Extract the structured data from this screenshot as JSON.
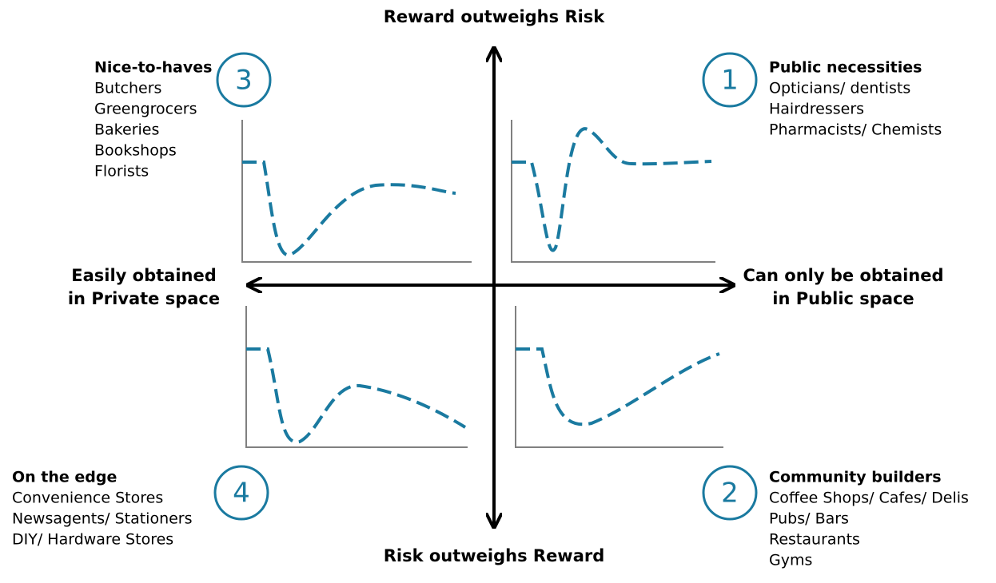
{
  "axes": {
    "top": "Reward outweighs Risk",
    "bottom": "Risk outweighs Reward",
    "left": [
      "Easily obtained",
      "in Private space"
    ],
    "right": [
      "Can only be obtained",
      "in Public space"
    ]
  },
  "quadrants": [
    {
      "number": "1",
      "title": "Public necessities",
      "items": [
        "Opticians/ dentists",
        "Hairdressers",
        "Pharmacists/ Chemists"
      ]
    },
    {
      "number": "2",
      "title": "Community builders",
      "items": [
        "Coffee Shops/ Cafes/ Delis",
        "Pubs/ Bars",
        "Restaurants",
        "Gyms"
      ]
    },
    {
      "number": "3",
      "title": "Nice-to-haves",
      "items": [
        "Butchers",
        "Greengrocers",
        "Bakeries",
        "Bookshops",
        "Florists"
      ]
    },
    {
      "number": "4",
      "title": "On the edge",
      "items": [
        "Convenience Stores",
        "Newsagents/ Stationers",
        "DIY/ Hardware Stores"
      ]
    }
  ]
}
